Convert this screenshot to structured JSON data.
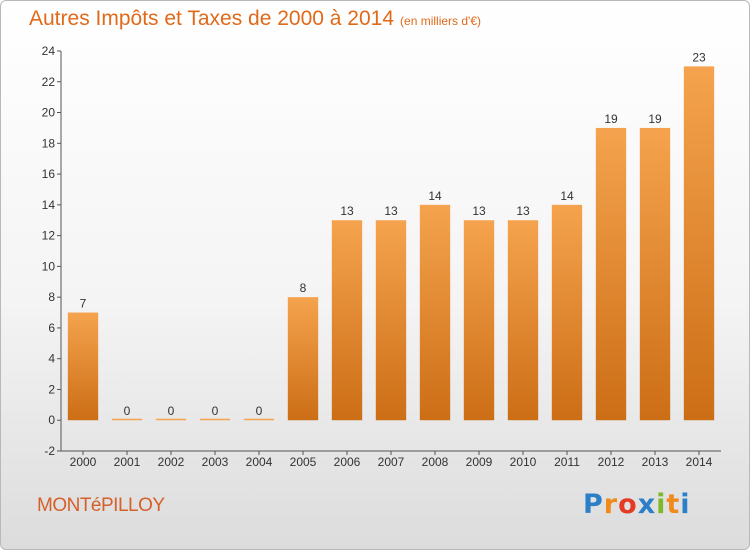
{
  "header": {
    "title": "Autres Impôts et Taxes de 2000 à 2014",
    "unit": "(en milliers d'€)"
  },
  "footer": {
    "commune": "MONTéPILLOY",
    "logo": {
      "text": "Proxiti",
      "letters": [
        "P",
        "r",
        "o",
        "x",
        "i",
        "t",
        "i"
      ],
      "colors": [
        "#2b7fc8",
        "#f08a1c",
        "#e53a24",
        "#2b7fc8",
        "#7db928",
        "#f08a1c",
        "#2b7fc8"
      ]
    }
  },
  "colors": {
    "bar_light": "#f5a34e",
    "bar_dark": "#cc6e16",
    "title": "#e06a1a"
  },
  "chart_data": {
    "type": "bar",
    "title": "Autres Impôts et Taxes de 2000 à 2014",
    "subtitle": "(en milliers d'€)",
    "categories": [
      "2000",
      "2001",
      "2002",
      "2003",
      "2004",
      "2005",
      "2006",
      "2007",
      "2008",
      "2009",
      "2010",
      "2011",
      "2012",
      "2013",
      "2014"
    ],
    "values": [
      7,
      0,
      0,
      0,
      0,
      8,
      13,
      13,
      14,
      13,
      13,
      14,
      19,
      19,
      23
    ],
    "value_labels": [
      "7",
      "0",
      "0",
      "0",
      "0",
      "8",
      "13",
      "13",
      "14",
      "13",
      "13",
      "14",
      "19",
      "19",
      "23"
    ],
    "ylim": [
      -2,
      24
    ],
    "yticks": [
      -2,
      0,
      2,
      4,
      6,
      8,
      10,
      12,
      14,
      16,
      18,
      20,
      22,
      24
    ],
    "xlabel": "",
    "ylabel": "",
    "grid": false,
    "legend": "none"
  }
}
